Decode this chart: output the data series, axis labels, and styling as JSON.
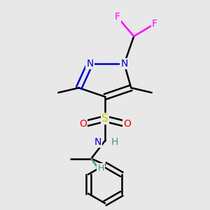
{
  "bg_color": "#e8e8e8",
  "atom_colors": {
    "C": "#000000",
    "N": "#0000cc",
    "S": "#cccc00",
    "O": "#ff0000",
    "F": "#ff00ff",
    "H_teal": "#4a9090"
  },
  "figure_size": [
    3.0,
    3.0
  ],
  "dpi": 100
}
